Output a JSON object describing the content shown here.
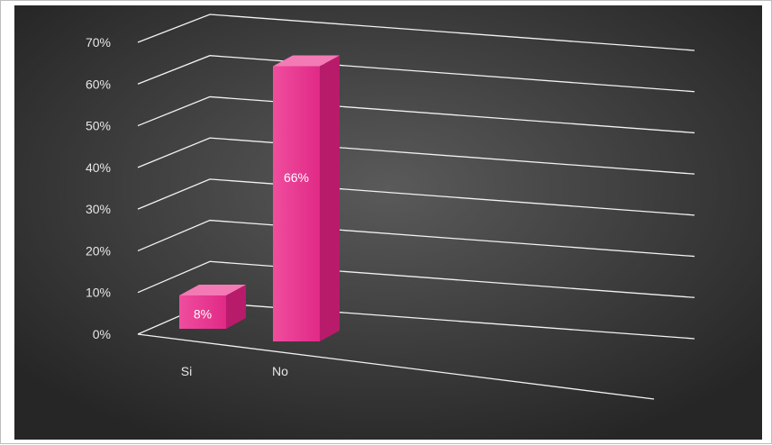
{
  "chart_data": {
    "type": "bar",
    "categories": [
      "Si",
      "No"
    ],
    "values": [
      8,
      66
    ],
    "data_labels": [
      "8%",
      "66%"
    ],
    "y_ticks": [
      "0%",
      "10%",
      "20%",
      "30%",
      "40%",
      "50%",
      "60%",
      "70%"
    ],
    "ylim": [
      0,
      70
    ],
    "grid": true,
    "bar_color": "#e8388f",
    "background_color": "#3a3a3a"
  }
}
